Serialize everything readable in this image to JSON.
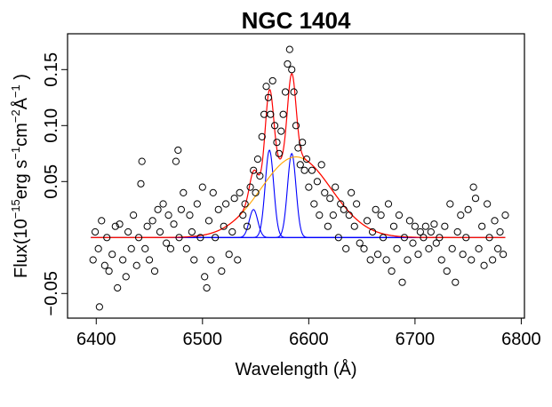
{
  "chart_data": {
    "type": "scatter",
    "title": "NGC 1404",
    "xlabel": "Wavelength (Å)",
    "ylabel_parts": [
      "Flux(10",
      "−15",
      "erg s",
      "−1",
      "cm",
      "−2",
      "Å",
      "−1",
      " )"
    ],
    "xlim": [
      6373,
      6803
    ],
    "ylim": [
      -0.072,
      0.182
    ],
    "xticks": [
      6400,
      6500,
      6600,
      6700,
      6800
    ],
    "yticks": [
      {
        "value": -0.05,
        "label": "−0.05"
      },
      0.05,
      {
        "value": 0.1,
        "label": "0.10"
      },
      0.15
    ],
    "marker_color": "#000000",
    "x": [
      6397,
      6399,
      6402,
      6405,
      6408,
      6410,
      6412,
      6415,
      6418,
      6420,
      6422,
      6425,
      6428,
      6430,
      6433,
      6435,
      6438,
      6440,
      6442,
      6443,
      6446,
      6448,
      6450,
      6403,
      6453,
      6455,
      6458,
      6460,
      6463,
      6466,
      6468,
      6470,
      6473,
      6475,
      6477,
      6478,
      6480,
      6482,
      6485,
      6488,
      6490,
      6492,
      6495,
      6498,
      6500,
      6502,
      6504,
      6506,
      6508,
      6510,
      6512,
      6515,
      6518,
      6520,
      6522,
      6525,
      6528,
      6530,
      6533,
      6535,
      6538,
      6540,
      6542,
      6545,
      6548,
      6550,
      6552,
      6554,
      6556,
      6558,
      6560,
      6562,
      6564,
      6566,
      6568,
      6570,
      6572,
      6574,
      6576,
      6578,
      6580,
      6582,
      6584,
      6586,
      6588,
      6590,
      6592,
      6594,
      6596,
      6598,
      6600,
      6603,
      6605,
      6608,
      6610,
      6612,
      6615,
      6618,
      6620,
      6623,
      6625,
      6628,
      6630,
      6633,
      6635,
      6638,
      6640,
      6643,
      6645,
      6648,
      6652,
      6655,
      6658,
      6660,
      6663,
      6665,
      6668,
      6670,
      6673,
      6675,
      6678,
      6680,
      6683,
      6685,
      6688,
      6690,
      6693,
      6695,
      6698,
      6700,
      6703,
      6705,
      6708,
      6710,
      6713,
      6715,
      6718,
      6720,
      6723,
      6725,
      6728,
      6730,
      6733,
      6735,
      6738,
      6740,
      6743,
      6745,
      6748,
      6750,
      6753,
      6755,
      6757,
      6760,
      6763,
      6765,
      6768,
      6770,
      6773,
      6775,
      6778,
      6780,
      6783,
      6785
    ],
    "values": [
      -0.02,
      0.005,
      -0.01,
      0.015,
      -0.025,
      0.0,
      -0.03,
      -0.015,
      0.01,
      -0.045,
      0.012,
      -0.02,
      -0.035,
      0.005,
      -0.01,
      0.02,
      -0.025,
      0.0,
      0.048,
      0.068,
      -0.01,
      0.01,
      -0.02,
      -0.062,
      0.015,
      -0.03,
      0.025,
      0.005,
      0.03,
      -0.005,
      0.02,
      -0.01,
      0.012,
      0.068,
      0.078,
      0.0,
      0.025,
      0.04,
      -0.01,
      0.02,
      0.005,
      -0.02,
      0.03,
      0.0,
      0.045,
      -0.035,
      -0.045,
      0.015,
      -0.02,
      0.04,
      0.0,
      0.025,
      -0.03,
      0.01,
      0.03,
      -0.015,
      0.005,
      0.035,
      -0.02,
      0.04,
      0.02,
      0.03,
      0.01,
      0.045,
      0.06,
      0.04,
      0.07,
      0.055,
      0.09,
      0.11,
      0.135,
      0.125,
      0.11,
      0.14,
      0.1,
      0.085,
      0.075,
      0.095,
      0.11,
      0.13,
      0.155,
      0.168,
      0.15,
      0.13,
      0.1,
      0.08,
      0.065,
      0.085,
      0.06,
      0.07,
      0.045,
      0.06,
      0.03,
      0.05,
      0.02,
      0.065,
      0.04,
      0.01,
      0.035,
      0.02,
      0.045,
      0.0,
      0.03,
      0.025,
      -0.01,
      0.02,
      0.04,
      0.01,
      0.03,
      -0.005,
      -0.01,
      0.015,
      -0.02,
      0.005,
      0.025,
      -0.015,
      0.02,
      0.0,
      -0.02,
      0.03,
      -0.03,
      0.01,
      -0.01,
      0.02,
      -0.04,
      0.0,
      -0.02,
      0.015,
      -0.005,
      0.01,
      -0.015,
      0.005,
      0.0,
      0.01,
      -0.01,
      0.005,
      0.012,
      -0.005,
      0.0,
      -0.02,
      0.01,
      -0.03,
      0.03,
      -0.01,
      -0.04,
      0.005,
      0.02,
      -0.015,
      0.0,
      0.025,
      -0.02,
      0.045,
      0.035,
      -0.01,
      0.01,
      -0.025,
      0.03,
      0.0,
      -0.02,
      0.015,
      -0.01,
      0.005,
      -0.015,
      0.02
    ],
    "model_range": [
      6395,
      6785
    ],
    "fit_color": "#ff0000",
    "components": [
      {
        "color": "#0000ff",
        "center": 6548,
        "amplitude": 0.025,
        "sigma": 4
      },
      {
        "color": "#0000ff",
        "center": 6563,
        "amplitude": 0.078,
        "sigma": 4
      },
      {
        "color": "#0000ff",
        "center": 6584,
        "amplitude": 0.075,
        "sigma": 4
      },
      {
        "color": "#ffa500",
        "center": 6588,
        "amplitude": 0.072,
        "sigma": 33
      }
    ]
  }
}
